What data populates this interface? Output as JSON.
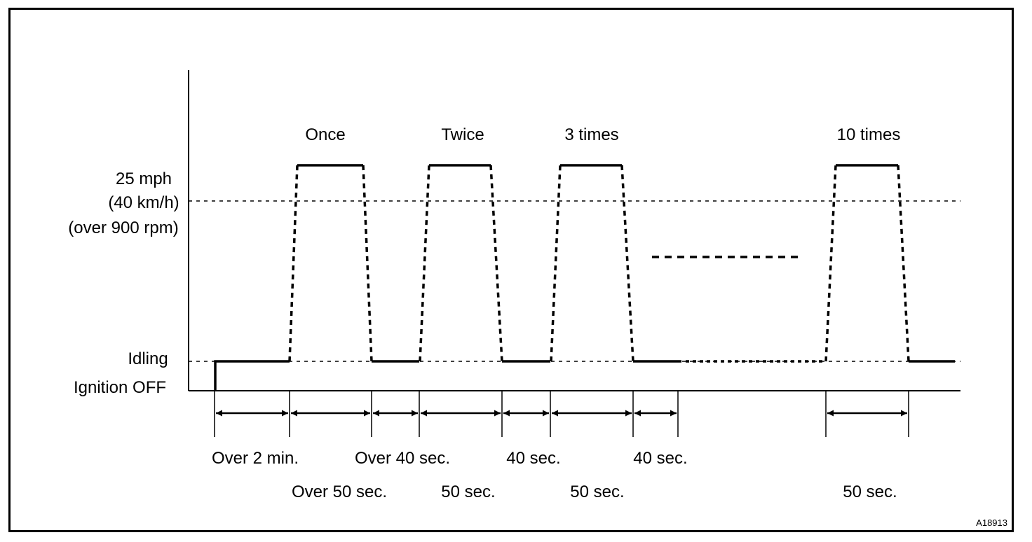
{
  "y_labels": {
    "speed_mph": "25 mph",
    "speed_kmh": "(40 km/h)",
    "speed_rpm": "(over 900 rpm)",
    "idling": "Idling",
    "ignition_off": "Ignition OFF"
  },
  "cycle_labels": [
    "Once",
    "Twice",
    "3 times",
    "10 times"
  ],
  "interval_labels": {
    "over_2_min": "Over 2 min.",
    "over_50_sec": "Over 50 sec.",
    "over_40_sec": "Over 40 sec.",
    "sec50_a": "50 sec.",
    "sec40_a": "40 sec.",
    "sec50_b": "50 sec.",
    "sec40_b": "40 sec.",
    "sec50_c": "50 sec."
  },
  "figure_code": "A18913"
}
